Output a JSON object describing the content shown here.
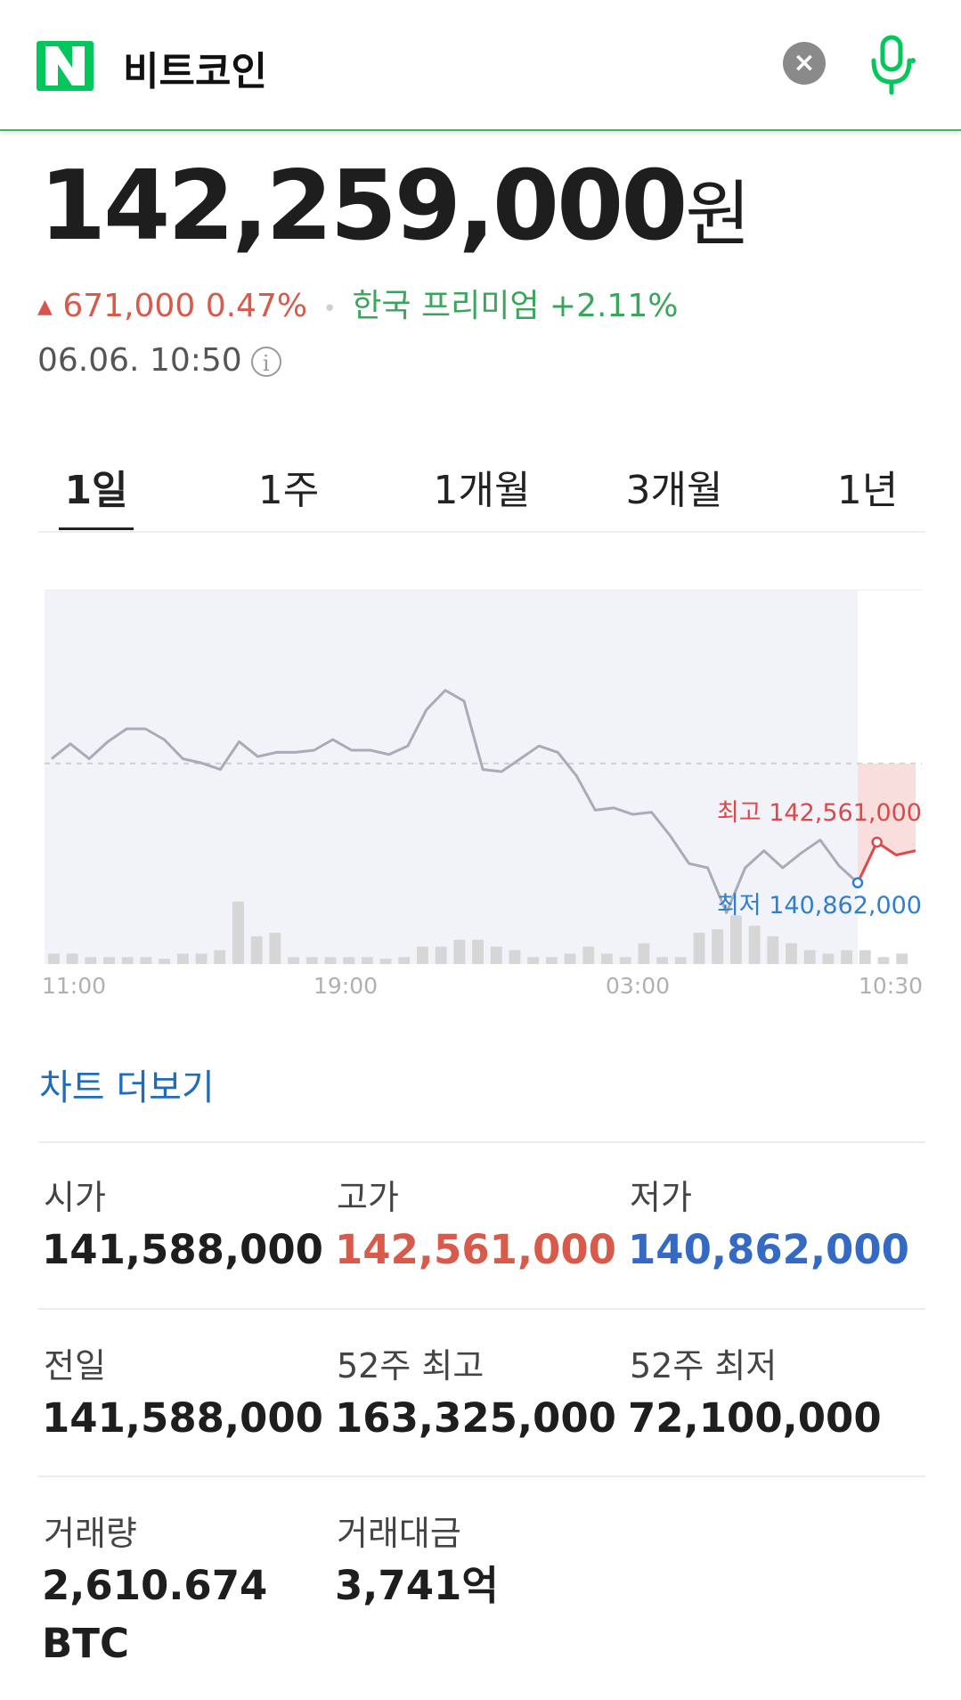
{
  "header": {
    "logo_label": "N",
    "search_query": "비트코인",
    "clear_icon": "close-icon",
    "mic_icon": "microphone-icon",
    "brand_color": "#03c75a"
  },
  "price": {
    "value": "142,259,000",
    "unit": "원",
    "change": "671,000 0.47%",
    "change_direction": "up",
    "premium": "한국 프리미엄 +2.11%",
    "timestamp": "06.06. 10:50",
    "info_icon": "info-icon",
    "up_color": "#d75a4a",
    "premium_color": "#3aa65b"
  },
  "tabs": [
    {
      "label": "1일",
      "active": true
    },
    {
      "label": "1주",
      "active": false
    },
    {
      "label": "1개월",
      "active": false
    },
    {
      "label": "3개월",
      "active": false
    },
    {
      "label": "1년",
      "active": false
    }
  ],
  "chart_data": {
    "type": "line",
    "x_tick_labels": [
      "11:00",
      "19:00",
      "03:00",
      "10:30"
    ],
    "series": [
      {
        "values": [
          141610000,
          141680000,
          141610000,
          141690000,
          141750000,
          141750000,
          141700000,
          141610000,
          141590000,
          141560000,
          141690000,
          141620000,
          141640000,
          141640000,
          141650000,
          141700000,
          141650000,
          141650000,
          141630000,
          141670000,
          141840000,
          141930000,
          141880000,
          141560000,
          141550000,
          141610000,
          141670000,
          141640000,
          141530000,
          141370000,
          141380000,
          141350000,
          141360000,
          141250000,
          141120000,
          141100000,
          140890000,
          141100000,
          141180000,
          141100000,
          141170000,
          141230000,
          141110000,
          141030000
        ]
      },
      {
        "values": [
          141030000,
          141220000,
          141160000,
          141180000
        ]
      }
    ],
    "reference_value": 141588000,
    "ylim": [
      140700000,
      142400000
    ],
    "high_label": "최고 142,561,000",
    "low_label": "최저 140,862,000",
    "volume": [
      3,
      3,
      2,
      2,
      2,
      2,
      1,
      3,
      3,
      4,
      18,
      8,
      9,
      2,
      2,
      2,
      2,
      2,
      1,
      2,
      5,
      5,
      7,
      7,
      5,
      4,
      2,
      2,
      3,
      5,
      3,
      2,
      6,
      2,
      2,
      9,
      10,
      14,
      11,
      8,
      6,
      4,
      3,
      4,
      4,
      2,
      3
    ],
    "colors": {
      "history": "#a8acb8",
      "recent": "#e0484a",
      "high": "#d94a4a",
      "low": "#2f7fd0",
      "volume": "#d6d6d6",
      "shade": "#f1f3f8"
    }
  },
  "chart_more": "차트 더보기",
  "stats": [
    {
      "label": "시가",
      "value": "141,588,000",
      "color": "#1e1e1e"
    },
    {
      "label": "고가",
      "value": "142,561,000",
      "color": "#d75a4a"
    },
    {
      "label": "저가",
      "value": "140,862,000",
      "color": "#3469c4"
    },
    {
      "label": "전일",
      "value": "141,588,000",
      "color": "#1e1e1e"
    },
    {
      "label": "52주 최고",
      "value": "163,325,000",
      "color": "#1e1e1e"
    },
    {
      "label": "52주 최저",
      "value": "72,100,000",
      "color": "#1e1e1e"
    },
    {
      "label": "거래량",
      "value": "2,610.674 BTC",
      "color": "#1e1e1e"
    },
    {
      "label": "거래대금",
      "value": "3,741억",
      "color": "#1e1e1e"
    }
  ]
}
